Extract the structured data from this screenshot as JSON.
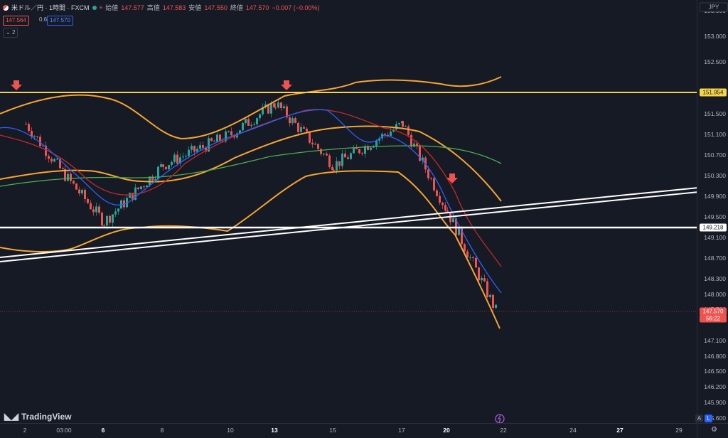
{
  "header": {
    "symbol_title": "米ドル／円 · 1時間 · FXCM",
    "open_label": "始値",
    "open": "147.577",
    "high_label": "高値",
    "high": "147.583",
    "low_label": "安値",
    "low": "147.550",
    "close_label": "終値",
    "close": "147.570",
    "change": "−0.007 (−0.00%)",
    "bid": "147.564",
    "spread": "0.6",
    "ask": "147.570",
    "indicators_count": "2"
  },
  "currency": "JPY",
  "price_axis": [
    "153.500",
    "153.000",
    "152.500",
    "151.500",
    "151.100",
    "150.700",
    "150.300",
    "149.900",
    "149.500",
    "149.100",
    "148.700",
    "148.300",
    "148.000",
    "147.700",
    "147.100",
    "146.800",
    "146.500",
    "146.200",
    "145.900",
    "145.600"
  ],
  "levels": {
    "resistance": "151.954",
    "support": "149.218",
    "last_price": "147.570",
    "countdown": "56:22"
  },
  "time_axis": [
    {
      "label": "2",
      "bold": false
    },
    {
      "label": "03:00",
      "bold": false
    },
    {
      "label": "6",
      "bold": true
    },
    {
      "label": "8",
      "bold": false
    },
    {
      "label": "10",
      "bold": false
    },
    {
      "label": "13",
      "bold": true
    },
    {
      "label": "15",
      "bold": false
    },
    {
      "label": "17",
      "bold": false
    },
    {
      "label": "20",
      "bold": true
    },
    {
      "label": "22",
      "bold": false
    },
    {
      "label": "24",
      "bold": false
    },
    {
      "label": "27",
      "bold": true
    },
    {
      "label": "29",
      "bold": false
    }
  ],
  "branding": "TradingView",
  "axis_buttons": {
    "auto": "A",
    "log": "L"
  },
  "colors": {
    "background": "#161a25",
    "up": "#26a69a",
    "down": "#ef5350",
    "resistance_line": "#f5d547",
    "support_line": "#ffffff",
    "bollinger": "#f7a531",
    "ma_blue": "#2962ff",
    "ma_red": "#d32f2f",
    "ma_green": "#4caf50"
  },
  "chart_data": {
    "type": "candlestick",
    "symbol": "米ドル／円",
    "timeframe": "1時間",
    "ylim": [
      145.5,
      153.7
    ],
    "horizontal_lines": [
      151.954,
      149.218
    ],
    "close_path": [
      {
        "x": "2",
        "y": 151.3
      },
      {
        "x": "03:00",
        "y": 150.3
      },
      {
        "x": "6",
        "y": 149.4
      },
      {
        "x": "8",
        "y": 150.5
      },
      {
        "x": "10",
        "y": 151.1
      },
      {
        "x": "13",
        "y": 151.7
      },
      {
        "x": "15",
        "y": 150.5
      },
      {
        "x": "17",
        "y": 151.3
      },
      {
        "x": "20",
        "y": 149.6
      },
      {
        "x": "21",
        "y": 147.57
      }
    ],
    "annotations": [
      "down-arrow near 2",
      "down-arrow near 13",
      "down-arrow near 20"
    ]
  }
}
